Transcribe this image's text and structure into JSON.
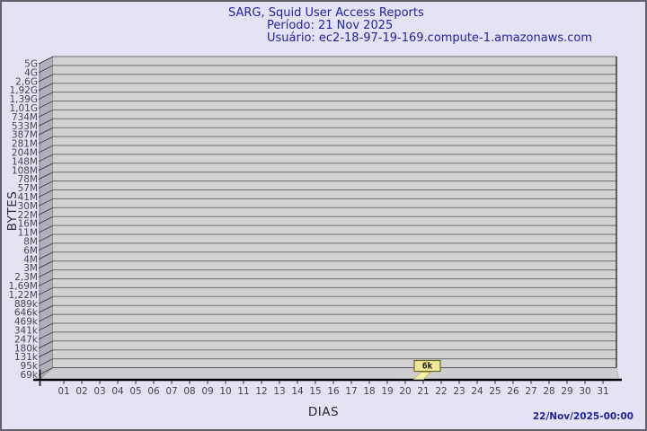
{
  "header": {
    "title": "SARG, Squid User Access Reports",
    "period": "Período: 21 Nov 2025",
    "user": "Usuário: ec2-18-97-19-169.compute-1.amazonaws.com"
  },
  "footer": {
    "generated": "22/Nov/2025-00:00"
  },
  "chart_data": {
    "type": "bar",
    "title": "SARG, Squid User Access Reports",
    "subtitle_period": "21 Nov 2025",
    "subtitle_user": "ec2-18-97-19-169.compute-1.amazonaws.com",
    "xlabel": "DIAS",
    "ylabel": "BYTES",
    "y_scale": "log",
    "grid": true,
    "y_tick_labels": [
      "5G",
      "4G",
      "2,6G",
      "1,92G",
      "1,39G",
      "1,01G",
      "734M",
      "533M",
      "387M",
      "281M",
      "204M",
      "148M",
      "108M",
      "78M",
      "57M",
      "41M",
      "30M",
      "22M",
      "16M",
      "11M",
      "8M",
      "6M",
      "4M",
      "3M",
      "2,3M",
      "1,69M",
      "1,22M",
      "889k",
      "646k",
      "469k",
      "341k",
      "247k",
      "180k",
      "131k",
      "95k",
      "69k"
    ],
    "y_axis_range": {
      "min_label": "69k",
      "max_label": "5G"
    },
    "x_tick_labels": [
      "01",
      "02",
      "03",
      "04",
      "05",
      "06",
      "07",
      "08",
      "09",
      "10",
      "11",
      "12",
      "13",
      "14",
      "15",
      "16",
      "17",
      "18",
      "19",
      "20",
      "21",
      "22",
      "23",
      "24",
      "25",
      "26",
      "27",
      "28",
      "29",
      "30",
      "31"
    ],
    "bars": [
      {
        "x": "21",
        "label": "6k",
        "value_bytes": 6000
      }
    ],
    "colors": {
      "background": "#e3e3f3",
      "plot_fill": "#d2d2d2",
      "grid": "#6e6e6e",
      "wall": "#b0b0ba",
      "floor": "#cdcdd2",
      "axis": "#000000",
      "tick_text": "#47474b",
      "title_text": "#2222a6",
      "bar_fill": "#f3edb0",
      "bar_edge": "#bfae4e",
      "bar_label_bg": "#f0e79d",
      "bar_label_border": "#6c6c24"
    }
  }
}
